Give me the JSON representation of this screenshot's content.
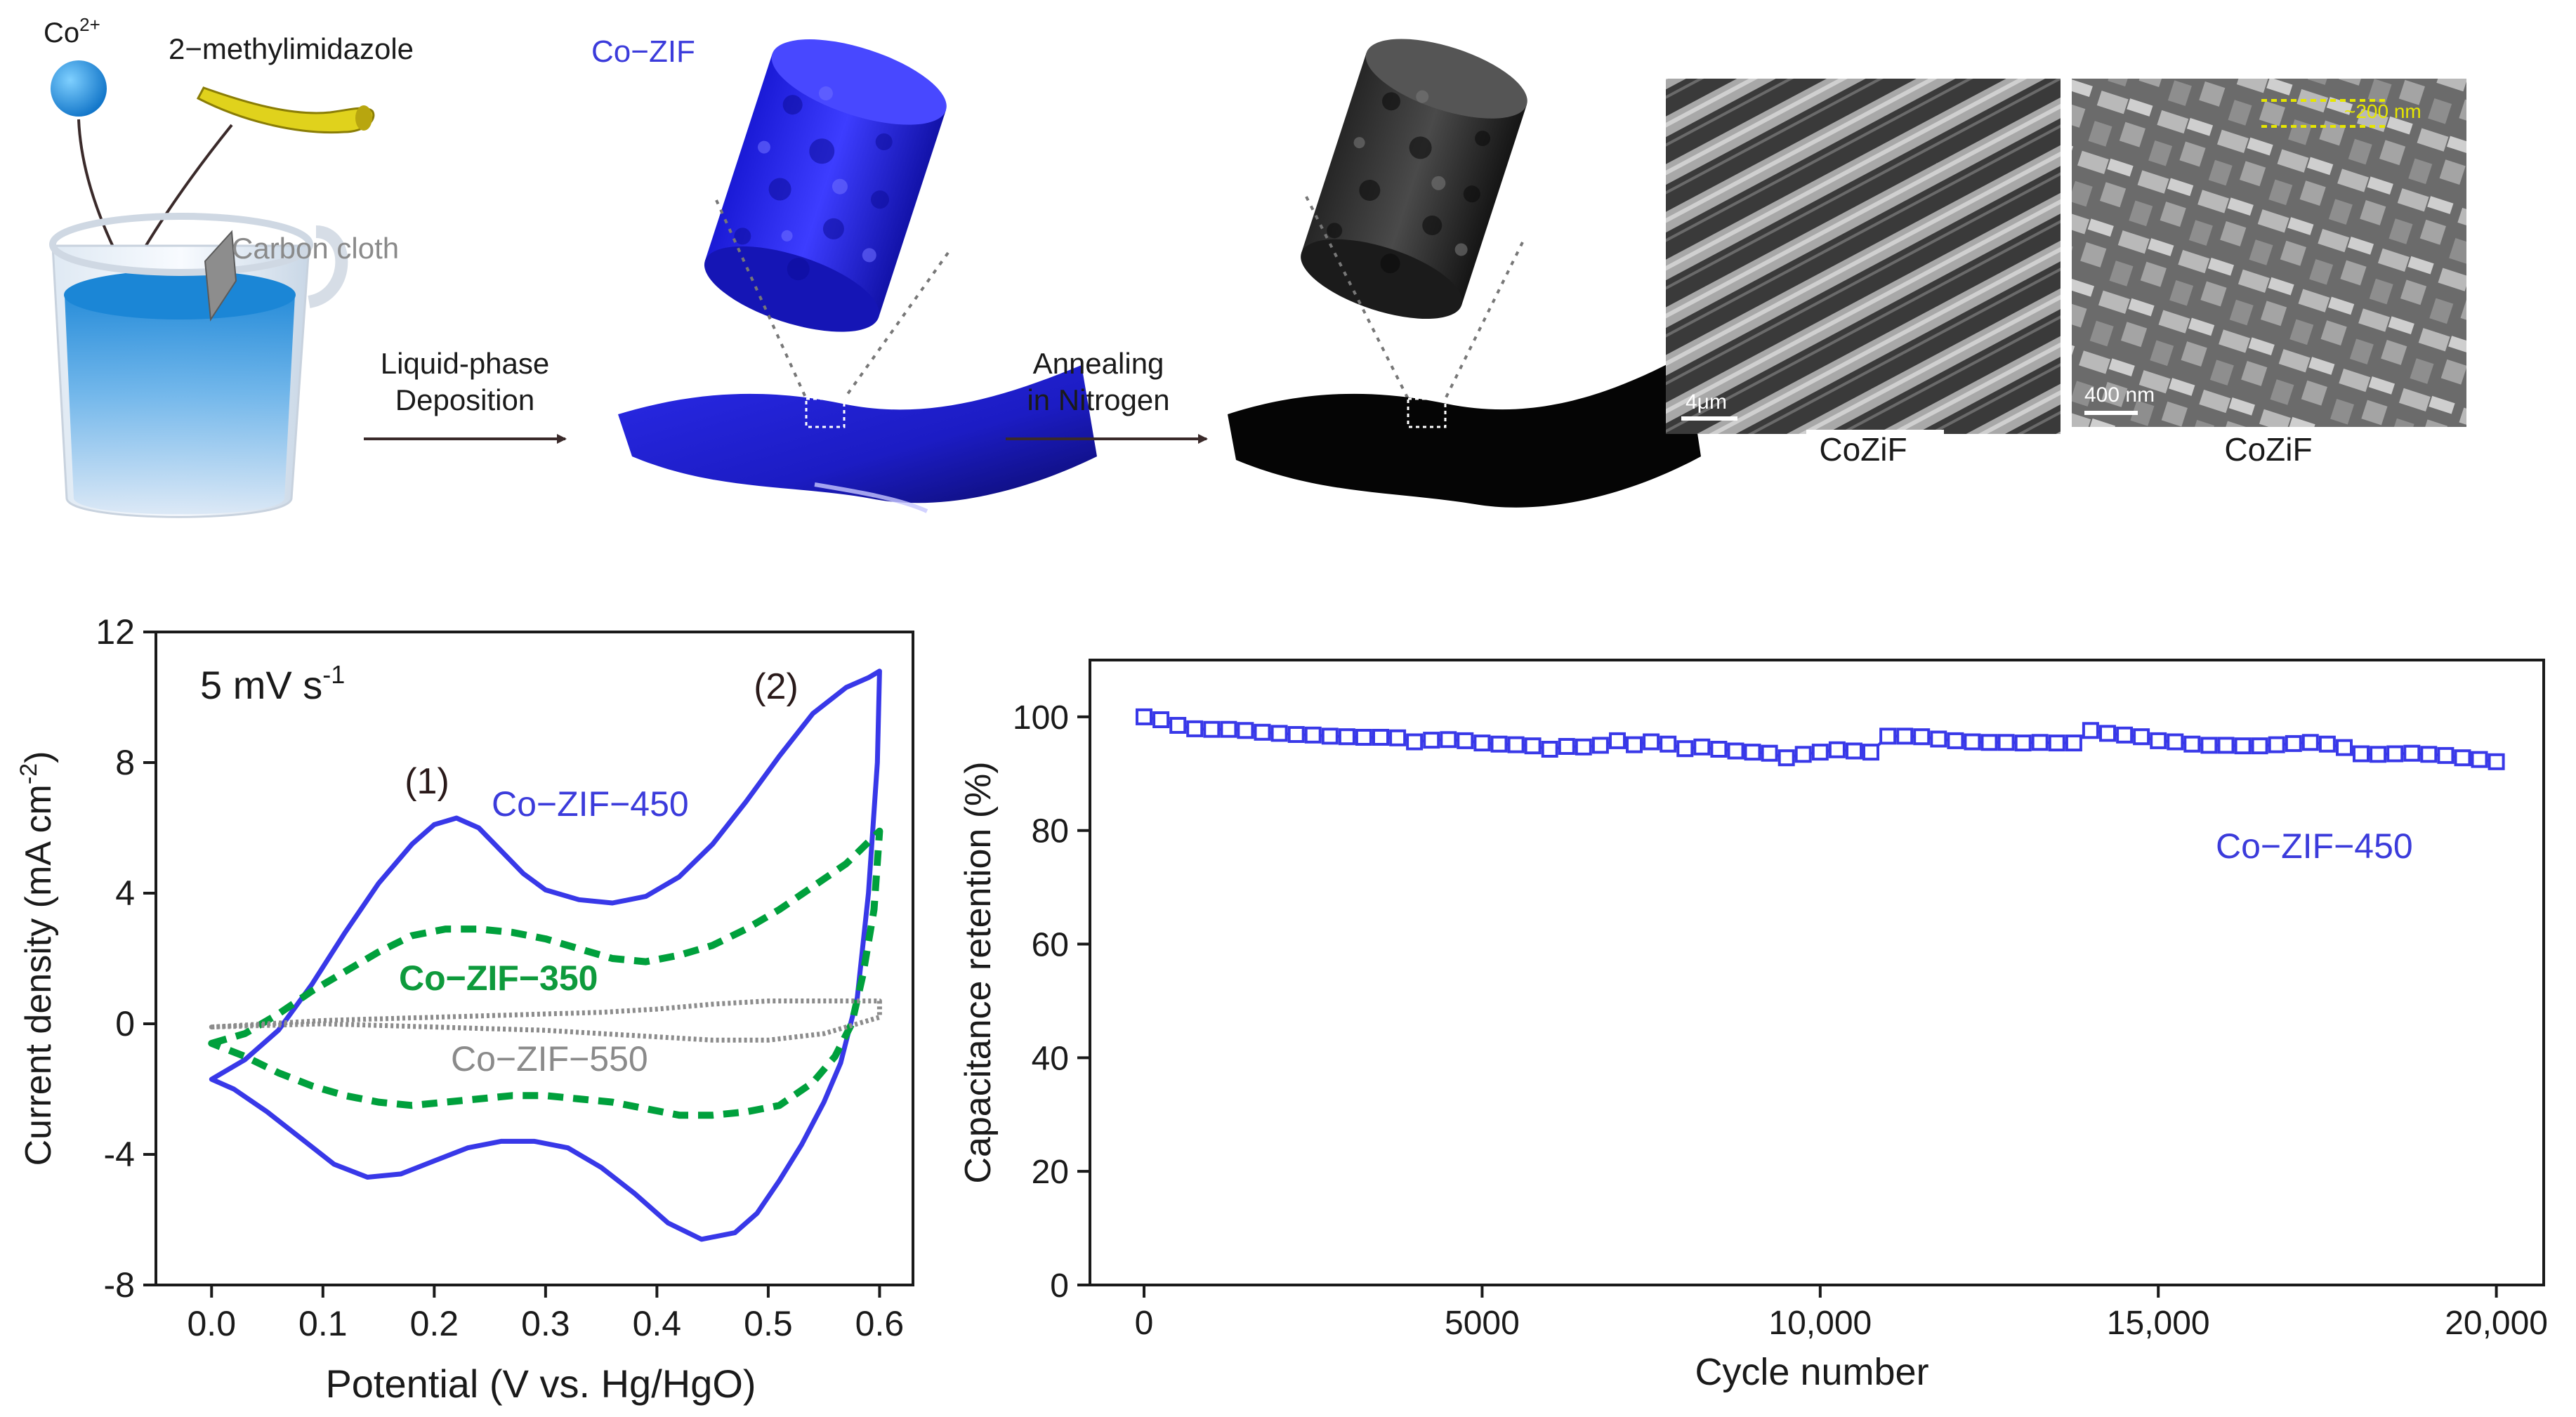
{
  "colors": {
    "blue": "#3838e8",
    "green": "#00a03c",
    "gray": "#8c8c8c",
    "text_dark": "#1a1a1a",
    "label_blue": "#3b3bdb",
    "label_green": "#0e9a3c",
    "label_gray": "#8a8a8a"
  },
  "scheme": {
    "ion_label": "Co",
    "ion_charge": "2+",
    "linker_label": "2−methylimidazole",
    "substrate_label": "Carbon cloth",
    "step1_line1": "Liquid-phase",
    "step1_line2": "Deposition",
    "product1_label": "Co−ZIF",
    "step2_line1": "Annealing",
    "step2_line2": "in Nitrogen"
  },
  "sem": {
    "left": {
      "scale_label": "4μm",
      "caption": "CoZiF"
    },
    "right": {
      "scale_label": "400 nm",
      "annotation": "~200 nm",
      "caption": "CoZiF"
    }
  },
  "chart_data": [
    {
      "id": "cv",
      "type": "line",
      "title": "5 mV s⁻¹",
      "scan_rate_text": "5 mV s",
      "scan_rate_sup": "-1",
      "xlabel": "Potential (V vs. Hg/HgO)",
      "ylabel": "Current density (mA cm⁻²)",
      "ylabel_main": "Current density (mA cm",
      "ylabel_sup": "-2",
      "ylabel_end": ")",
      "xlim": [
        -0.05,
        0.63
      ],
      "ylim": [
        -8,
        12
      ],
      "xticks": [
        0.0,
        0.1,
        0.2,
        0.3,
        0.4,
        0.5,
        0.6
      ],
      "xtick_labels": [
        "0.0",
        "0.1",
        "0.2",
        "0.3",
        "0.4",
        "0.5",
        "0.6"
      ],
      "yticks": [
        -8,
        -4,
        0,
        4,
        8,
        12
      ],
      "ytick_labels": [
        "-8",
        "-4",
        "0",
        "4",
        "8",
        "12"
      ],
      "annotations": [
        "(1)",
        "(2)"
      ],
      "series": [
        {
          "name": "Co−ZIF−450",
          "color": "#3838e8",
          "style": "solid",
          "x": [
            0.0,
            0.03,
            0.06,
            0.09,
            0.12,
            0.15,
            0.18,
            0.2,
            0.22,
            0.24,
            0.26,
            0.28,
            0.3,
            0.33,
            0.36,
            0.39,
            0.42,
            0.45,
            0.48,
            0.51,
            0.54,
            0.57,
            0.59,
            0.6,
            0.598,
            0.59,
            0.58,
            0.565,
            0.55,
            0.53,
            0.51,
            0.49,
            0.47,
            0.44,
            0.41,
            0.38,
            0.35,
            0.32,
            0.29,
            0.26,
            0.23,
            0.2,
            0.17,
            0.14,
            0.11,
            0.08,
            0.05,
            0.02,
            0.0
          ],
          "y": [
            -1.7,
            -1.1,
            -0.2,
            1.2,
            2.8,
            4.3,
            5.5,
            6.1,
            6.3,
            6.0,
            5.3,
            4.6,
            4.1,
            3.8,
            3.7,
            3.9,
            4.5,
            5.5,
            6.8,
            8.2,
            9.5,
            10.3,
            10.6,
            10.8,
            8.0,
            4.0,
            0.8,
            -1.2,
            -2.4,
            -3.7,
            -4.8,
            -5.8,
            -6.4,
            -6.6,
            -6.1,
            -5.2,
            -4.4,
            -3.8,
            -3.6,
            -3.6,
            -3.8,
            -4.2,
            -4.6,
            -4.7,
            -4.3,
            -3.5,
            -2.7,
            -2.0,
            -1.7
          ]
        },
        {
          "name": "Co−ZIF−350",
          "color": "#00a03c",
          "style": "dashed",
          "x": [
            0.0,
            0.03,
            0.06,
            0.09,
            0.12,
            0.15,
            0.18,
            0.21,
            0.24,
            0.27,
            0.3,
            0.33,
            0.36,
            0.39,
            0.42,
            0.45,
            0.48,
            0.51,
            0.54,
            0.57,
            0.6,
            0.595,
            0.585,
            0.575,
            0.56,
            0.54,
            0.51,
            0.48,
            0.45,
            0.42,
            0.39,
            0.36,
            0.33,
            0.3,
            0.27,
            0.24,
            0.21,
            0.18,
            0.15,
            0.12,
            0.09,
            0.06,
            0.03,
            0.0
          ],
          "y": [
            -0.6,
            -0.3,
            0.3,
            1.0,
            1.6,
            2.2,
            2.7,
            2.9,
            2.9,
            2.8,
            2.6,
            2.3,
            2.0,
            1.9,
            2.1,
            2.4,
            2.9,
            3.5,
            4.2,
            4.9,
            5.9,
            3.5,
            1.5,
            0.0,
            -1.0,
            -1.8,
            -2.5,
            -2.7,
            -2.8,
            -2.8,
            -2.6,
            -2.4,
            -2.3,
            -2.2,
            -2.2,
            -2.3,
            -2.4,
            -2.5,
            -2.4,
            -2.2,
            -1.9,
            -1.5,
            -1.0,
            -0.6
          ]
        },
        {
          "name": "Co−ZIF−550",
          "color": "#8c8c8c",
          "style": "dotted",
          "x": [
            0.0,
            0.05,
            0.1,
            0.15,
            0.2,
            0.25,
            0.3,
            0.35,
            0.4,
            0.45,
            0.5,
            0.55,
            0.6,
            0.6,
            0.55,
            0.5,
            0.45,
            0.4,
            0.35,
            0.3,
            0.25,
            0.2,
            0.15,
            0.1,
            0.05,
            0.0
          ],
          "y": [
            -0.1,
            0.0,
            0.1,
            0.15,
            0.2,
            0.25,
            0.3,
            0.35,
            0.45,
            0.6,
            0.7,
            0.7,
            0.7,
            0.2,
            -0.3,
            -0.5,
            -0.5,
            -0.4,
            -0.3,
            -0.2,
            -0.15,
            -0.1,
            -0.05,
            0.0,
            -0.05,
            -0.1
          ]
        }
      ]
    },
    {
      "id": "cycling",
      "type": "line",
      "xlabel": "Cycle number",
      "ylabel": "Capacitance retention (%)",
      "xlim": [
        -800,
        20700
      ],
      "ylim": [
        0,
        110
      ],
      "xticks": [
        0,
        5000,
        10000,
        15000,
        20000
      ],
      "xtick_labels": [
        "0",
        "5000",
        "10,000",
        "15,000",
        "20,000"
      ],
      "yticks": [
        0,
        20,
        40,
        60,
        80,
        100
      ],
      "ytick_labels": [
        "0",
        "20",
        "40",
        "60",
        "80",
        "100"
      ],
      "series": [
        {
          "name": "Co−ZIF−450",
          "color": "#3838e8",
          "marker": "open-square",
          "x": [
            0,
            250,
            500,
            750,
            1000,
            1250,
            1500,
            1750,
            2000,
            2250,
            2500,
            2750,
            3000,
            3250,
            3500,
            3750,
            4000,
            4250,
            4500,
            4750,
            5000,
            5250,
            5500,
            5750,
            6000,
            6250,
            6500,
            6750,
            7000,
            7250,
            7500,
            7750,
            8000,
            8250,
            8500,
            8750,
            9000,
            9250,
            9500,
            9750,
            10000,
            10250,
            10500,
            10750,
            11000,
            11250,
            11500,
            11750,
            12000,
            12250,
            12500,
            12750,
            13000,
            13250,
            13500,
            13750,
            14000,
            14250,
            14500,
            14750,
            15000,
            15250,
            15500,
            15750,
            16000,
            16250,
            16500,
            16750,
            17000,
            17250,
            17500,
            17750,
            18000,
            18250,
            18500,
            18750,
            19000,
            19250,
            19500,
            19750,
            20000
          ],
          "y": [
            100.0,
            99.5,
            98.5,
            97.9,
            97.8,
            97.8,
            97.6,
            97.3,
            97.1,
            96.9,
            96.8,
            96.6,
            96.5,
            96.4,
            96.4,
            96.3,
            95.6,
            95.9,
            96.0,
            95.8,
            95.4,
            95.2,
            95.1,
            94.9,
            94.3,
            94.8,
            94.7,
            95.0,
            95.8,
            95.1,
            95.6,
            95.2,
            94.4,
            94.7,
            94.3,
            94.0,
            93.8,
            93.6,
            92.8,
            93.4,
            93.8,
            94.2,
            94.0,
            93.8,
            96.6,
            96.6,
            96.5,
            96.1,
            95.8,
            95.6,
            95.5,
            95.5,
            95.4,
            95.5,
            95.4,
            95.4,
            97.6,
            97.1,
            96.8,
            96.5,
            95.8,
            95.6,
            95.2,
            95.0,
            95.0,
            94.9,
            94.9,
            95.1,
            95.3,
            95.5,
            95.2,
            94.6,
            93.5,
            93.4,
            93.5,
            93.6,
            93.4,
            93.2,
            92.8,
            92.5,
            92.1
          ]
        }
      ]
    }
  ]
}
